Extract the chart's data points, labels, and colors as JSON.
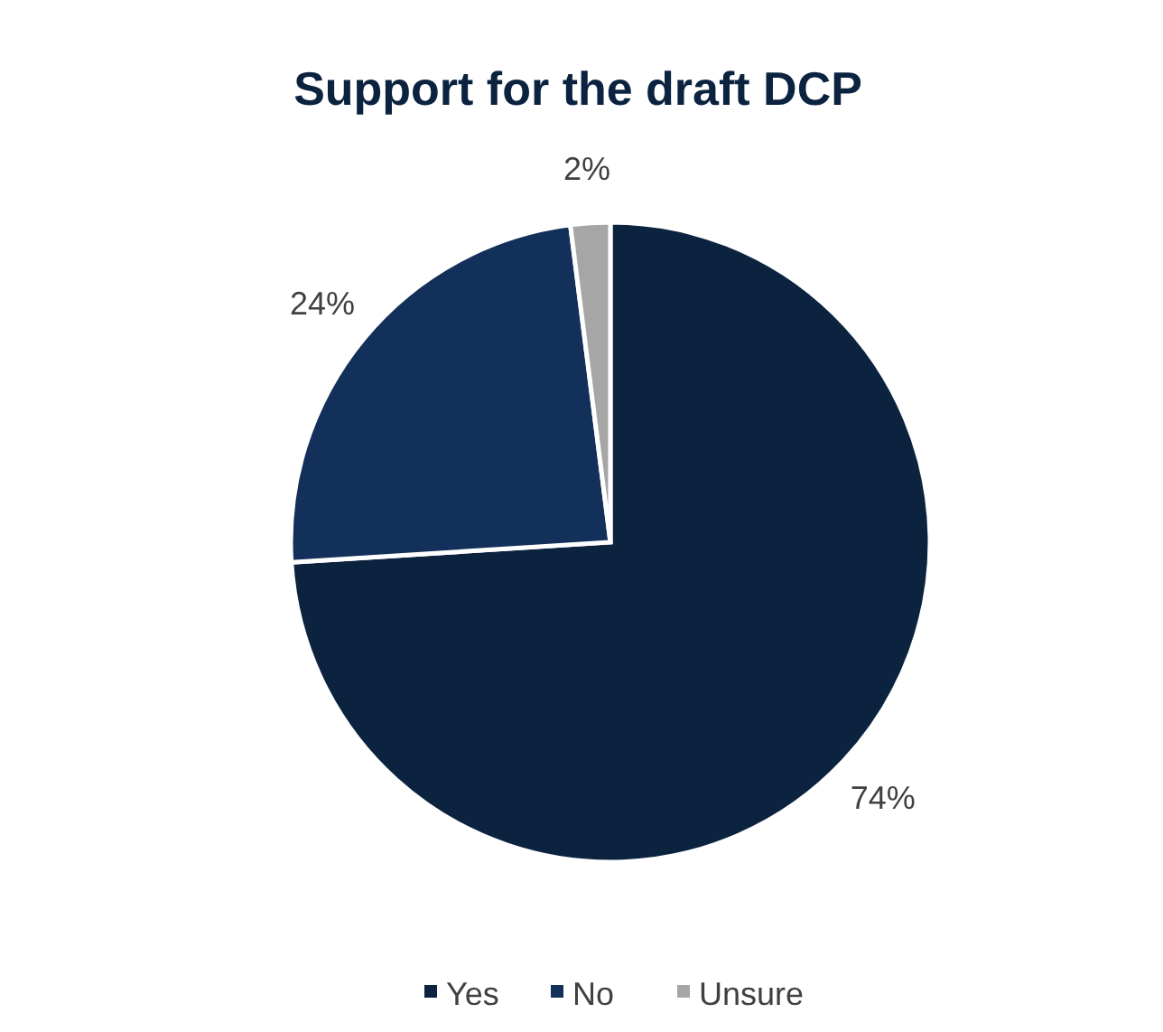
{
  "chart_data": {
    "type": "pie",
    "title": "Support for the draft DCP",
    "categories": [
      "Yes",
      "No",
      "Unsure"
    ],
    "values": [
      74,
      24,
      2
    ],
    "colors": [
      "#0c2340",
      "#13305a",
      "#a6a6a6"
    ],
    "value_labels": [
      "74%",
      "24%",
      "2%"
    ],
    "legend": "bottom"
  }
}
